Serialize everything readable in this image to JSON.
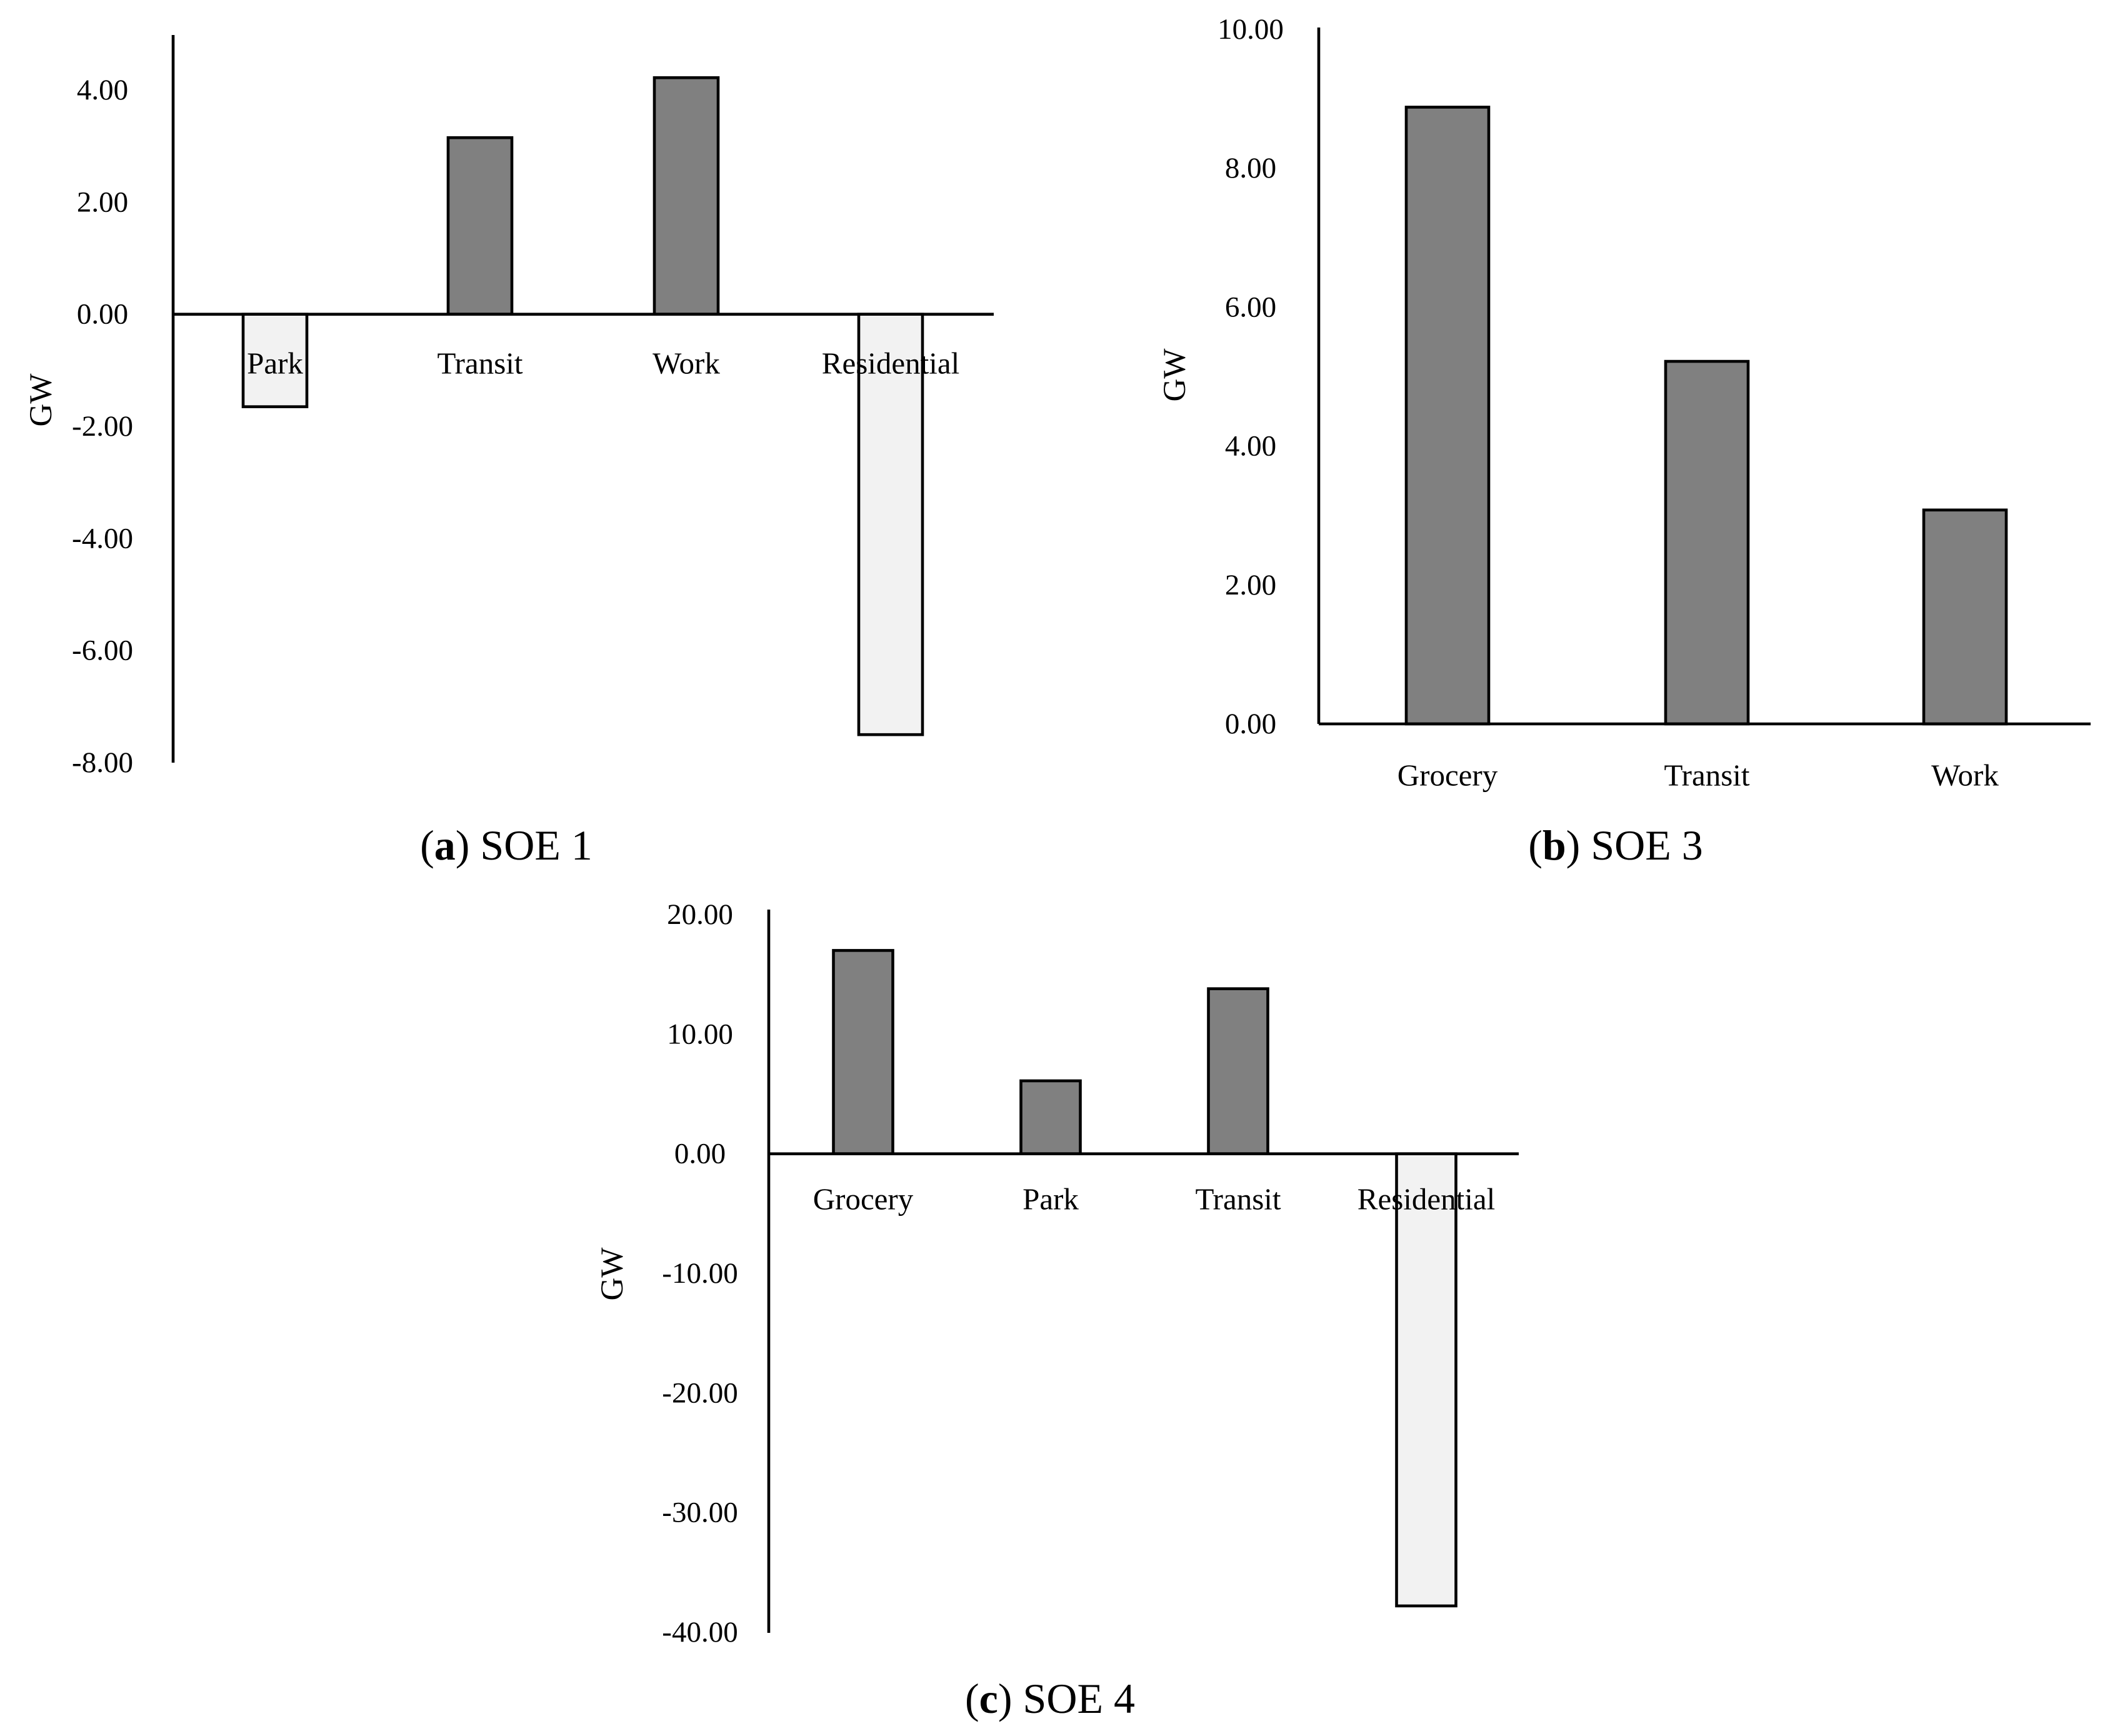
{
  "colors": {
    "positive_bar": "#808080",
    "negative_bar": "#f2f2f2",
    "axis": "#000000",
    "background": "#ffffff"
  },
  "chart_data": [
    {
      "type": "bar",
      "caption": {
        "letter": "a",
        "text": "SOE 1"
      },
      "ylabel": "GW",
      "categories": [
        "Park",
        "Transit",
        "Work",
        "Residential"
      ],
      "values": [
        -1.65,
        3.15,
        4.22,
        -7.5
      ],
      "ylim": [
        -8,
        5
      ],
      "yticks": [
        4.0,
        2.0,
        0.0,
        -2.0,
        -4.0,
        -6.0,
        -8.0
      ],
      "ytick_labels": [
        "4.00",
        "2.00",
        "0.00",
        "-2.00",
        "-4.00",
        "-6.00",
        "-8.00"
      ],
      "category_labels_at": "zero-line",
      "grid": false,
      "legend": "none"
    },
    {
      "type": "bar",
      "caption": {
        "letter": "b",
        "text": "SOE 3"
      },
      "ylabel": "GW",
      "categories": [
        "Grocery",
        "Transit",
        "Work"
      ],
      "values": [
        8.88,
        5.22,
        3.08
      ],
      "ylim": [
        0,
        10
      ],
      "yticks": [
        10.0,
        8.0,
        6.0,
        4.0,
        2.0,
        0.0
      ],
      "ytick_labels": [
        "10.00",
        "8.00",
        "6.00",
        "4.00",
        "2.00",
        "0.00"
      ],
      "category_labels_at": "zero-line",
      "grid": false,
      "legend": "none"
    },
    {
      "type": "bar",
      "caption": {
        "letter": "c",
        "text": "SOE 4"
      },
      "ylabel": "GW",
      "categories": [
        "Grocery",
        "Park",
        "Transit",
        "Residential"
      ],
      "values": [
        17.0,
        6.1,
        13.8,
        -37.8
      ],
      "ylim": [
        -40,
        20
      ],
      "yticks": [
        20.0,
        10.0,
        0.0,
        -10.0,
        -20.0,
        -30.0,
        -40.0
      ],
      "ytick_labels": [
        "20.00",
        "10.00",
        "0.00",
        "-10.00",
        "-20.00",
        "-30.00",
        "-40.00"
      ],
      "category_labels_at": "zero-line",
      "grid": false,
      "legend": "none"
    }
  ]
}
